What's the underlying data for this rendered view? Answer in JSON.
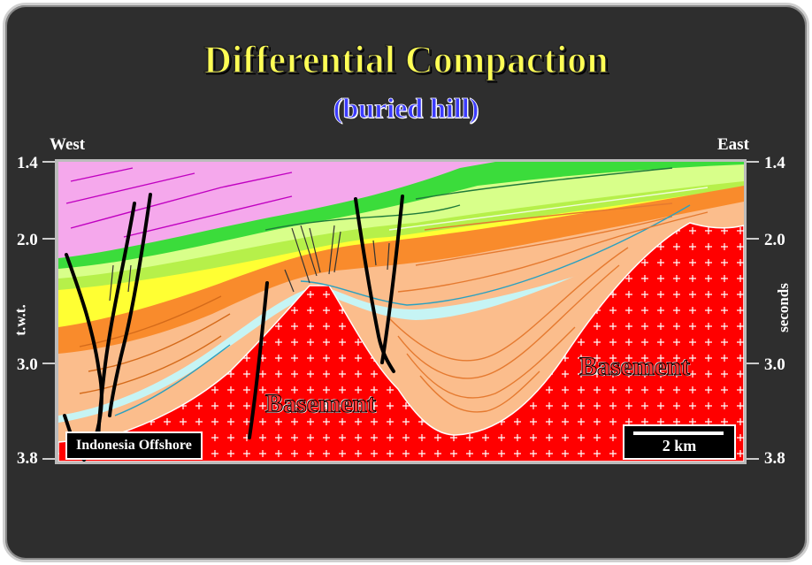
{
  "title": "Differential Compaction",
  "subtitle": "(buried hill)",
  "direction": {
    "west": "West",
    "east": "East"
  },
  "axis": {
    "left_label": "t.w.t.",
    "right_label": "seconds",
    "ticks": [
      "1.4",
      "2.0",
      "3.0",
      "3.8"
    ]
  },
  "annotations": {
    "basement_left": "Basement",
    "basement_right": "Basement",
    "location": "Indonesia Offshore",
    "scale": "2 km"
  },
  "colors": {
    "background": "#2e2e2e",
    "title": "#ffff55",
    "subtitle": "#3b3bff",
    "basement": "#ff0000",
    "pink_unit": "#f5a8ec",
    "green_unit": "#3bdc3b",
    "light_green_unit": "#d8ff8a",
    "yellow_unit": "#ffff33",
    "orange_unit": "#f98b2c",
    "light_orange_unit": "#fbbd8c",
    "cyan_unit": "#c6f4f4",
    "faults": "#000000"
  }
}
